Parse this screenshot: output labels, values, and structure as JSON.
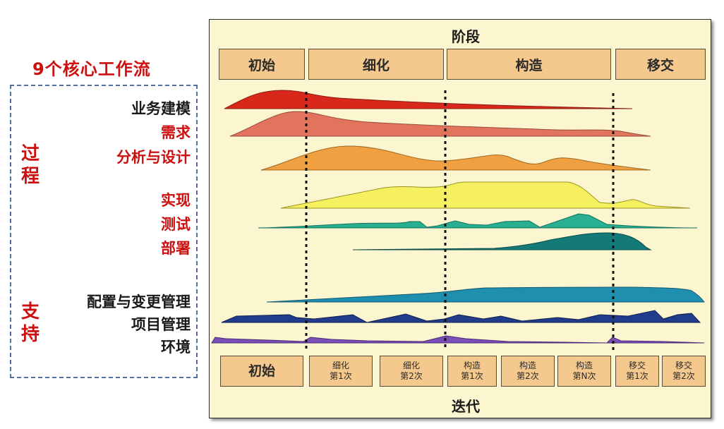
{
  "title": "9个核心工作流",
  "phases_header": "阶段",
  "iterations_header": "迭代",
  "phases": [
    "初始",
    "细化",
    "构造",
    "移交"
  ],
  "groups": {
    "process": "过程",
    "support": "支持"
  },
  "workflows": [
    {
      "label": "业务建模",
      "color": "#d8281c"
    },
    {
      "label": "需求",
      "color": "#e2745e"
    },
    {
      "label": "分析与设计",
      "color": "#f0a040"
    },
    {
      "label": "实现",
      "color": "#f6f060"
    },
    {
      "label": "测试",
      "color": "#28b090"
    },
    {
      "label": "部署",
      "color": "#137a78"
    },
    {
      "label": "配置与变更管理",
      "color": "#1f8fb0"
    },
    {
      "label": "项目管理",
      "color": "#203c8a"
    },
    {
      "label": "环境",
      "color": "#7a4fb8"
    }
  ],
  "iterations": [
    {
      "l1": "初始",
      "l2": ""
    },
    {
      "l1": "细化",
      "l2": "第1次"
    },
    {
      "l1": "细化",
      "l2": "第2次"
    },
    {
      "l1": "构造",
      "l2": "第1次"
    },
    {
      "l1": "构造",
      "l2": "第2次"
    },
    {
      "l1": "构造",
      "l2": "第N次"
    },
    {
      "l1": "移交",
      "l2": "第1次"
    },
    {
      "l1": "移交",
      "l2": "第2次"
    }
  ]
}
